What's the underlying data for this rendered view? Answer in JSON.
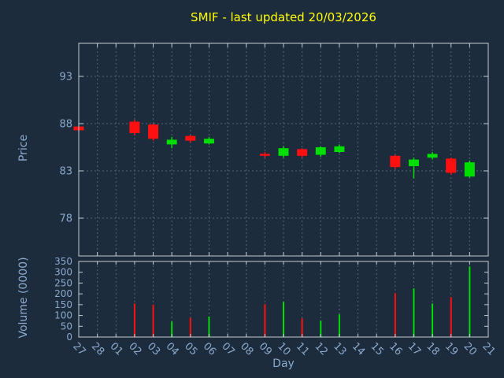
{
  "title": "SMIF - last updated 20/03/2026",
  "colors": {
    "background": "#1c2c3c",
    "title": "#ffff00",
    "axis_text": "#8ca9cc",
    "border": "#c6ccd2",
    "grid": "#526579",
    "up": "#00dd00",
    "down": "#ff1010"
  },
  "chart_data": [
    {
      "type": "candlestick",
      "title": "SMIF - last updated 20/03/2026",
      "xlabel": "Day",
      "ylabel": "Price",
      "ylim": [
        74,
        96.5
      ],
      "y_ticks": [
        78,
        83,
        88,
        93
      ],
      "grid": true,
      "x_categories": [
        "27",
        "28",
        "01",
        "02",
        "03",
        "04",
        "05",
        "06",
        "07",
        "08",
        "09",
        "10",
        "11",
        "12",
        "13",
        "14",
        "15",
        "16",
        "17",
        "18",
        "19",
        "20",
        "21"
      ],
      "candles": [
        {
          "day": "27",
          "open": 87.7,
          "high": 87.7,
          "low": 87.2,
          "close": 87.3
        },
        {
          "day": "02",
          "open": 88.2,
          "high": 88.4,
          "low": 86.8,
          "close": 87.0
        },
        {
          "day": "03",
          "open": 87.9,
          "high": 88.0,
          "low": 86.2,
          "close": 86.4
        },
        {
          "day": "04",
          "open": 85.8,
          "high": 86.6,
          "low": 85.4,
          "close": 86.3
        },
        {
          "day": "05",
          "open": 86.7,
          "high": 86.8,
          "low": 86.0,
          "close": 86.2
        },
        {
          "day": "06",
          "open": 85.9,
          "high": 86.6,
          "low": 85.8,
          "close": 86.4
        },
        {
          "day": "09",
          "open": 84.8,
          "high": 85.0,
          "low": 84.4,
          "close": 84.6
        },
        {
          "day": "10",
          "open": 84.6,
          "high": 85.6,
          "low": 84.4,
          "close": 85.4
        },
        {
          "day": "11",
          "open": 85.3,
          "high": 85.4,
          "low": 84.4,
          "close": 84.6
        },
        {
          "day": "12",
          "open": 84.7,
          "high": 85.6,
          "low": 84.5,
          "close": 85.5
        },
        {
          "day": "13",
          "open": 85.0,
          "high": 85.8,
          "low": 84.9,
          "close": 85.6
        },
        {
          "day": "16",
          "open": 84.6,
          "high": 84.7,
          "low": 83.2,
          "close": 83.4
        },
        {
          "day": "17",
          "open": 83.5,
          "high": 84.4,
          "low": 82.2,
          "close": 84.2
        },
        {
          "day": "18",
          "open": 84.4,
          "high": 85.0,
          "low": 84.2,
          "close": 84.8
        },
        {
          "day": "19",
          "open": 84.3,
          "high": 84.4,
          "low": 82.6,
          "close": 82.8
        },
        {
          "day": "20",
          "open": 82.4,
          "high": 84.1,
          "low": 82.3,
          "close": 83.9
        }
      ]
    },
    {
      "type": "bar",
      "ylabel": "Volume (0000)",
      "ylim": [
        0,
        350
      ],
      "y_ticks": [
        0,
        50,
        100,
        150,
        200,
        250,
        300,
        350
      ],
      "grid": true,
      "bars": [
        {
          "day": "02",
          "value": 155,
          "direction": "down"
        },
        {
          "day": "03",
          "value": 150,
          "direction": "down"
        },
        {
          "day": "04",
          "value": 72,
          "direction": "up"
        },
        {
          "day": "05",
          "value": 90,
          "direction": "down"
        },
        {
          "day": "06",
          "value": 95,
          "direction": "up"
        },
        {
          "day": "09",
          "value": 152,
          "direction": "down"
        },
        {
          "day": "10",
          "value": 163,
          "direction": "up"
        },
        {
          "day": "11",
          "value": 87,
          "direction": "down"
        },
        {
          "day": "12",
          "value": 76,
          "direction": "up"
        },
        {
          "day": "13",
          "value": 105,
          "direction": "up"
        },
        {
          "day": "16",
          "value": 203,
          "direction": "down"
        },
        {
          "day": "17",
          "value": 225,
          "direction": "up"
        },
        {
          "day": "18",
          "value": 155,
          "direction": "up"
        },
        {
          "day": "19",
          "value": 185,
          "direction": "down"
        },
        {
          "day": "20",
          "value": 326,
          "direction": "up"
        }
      ]
    }
  ]
}
